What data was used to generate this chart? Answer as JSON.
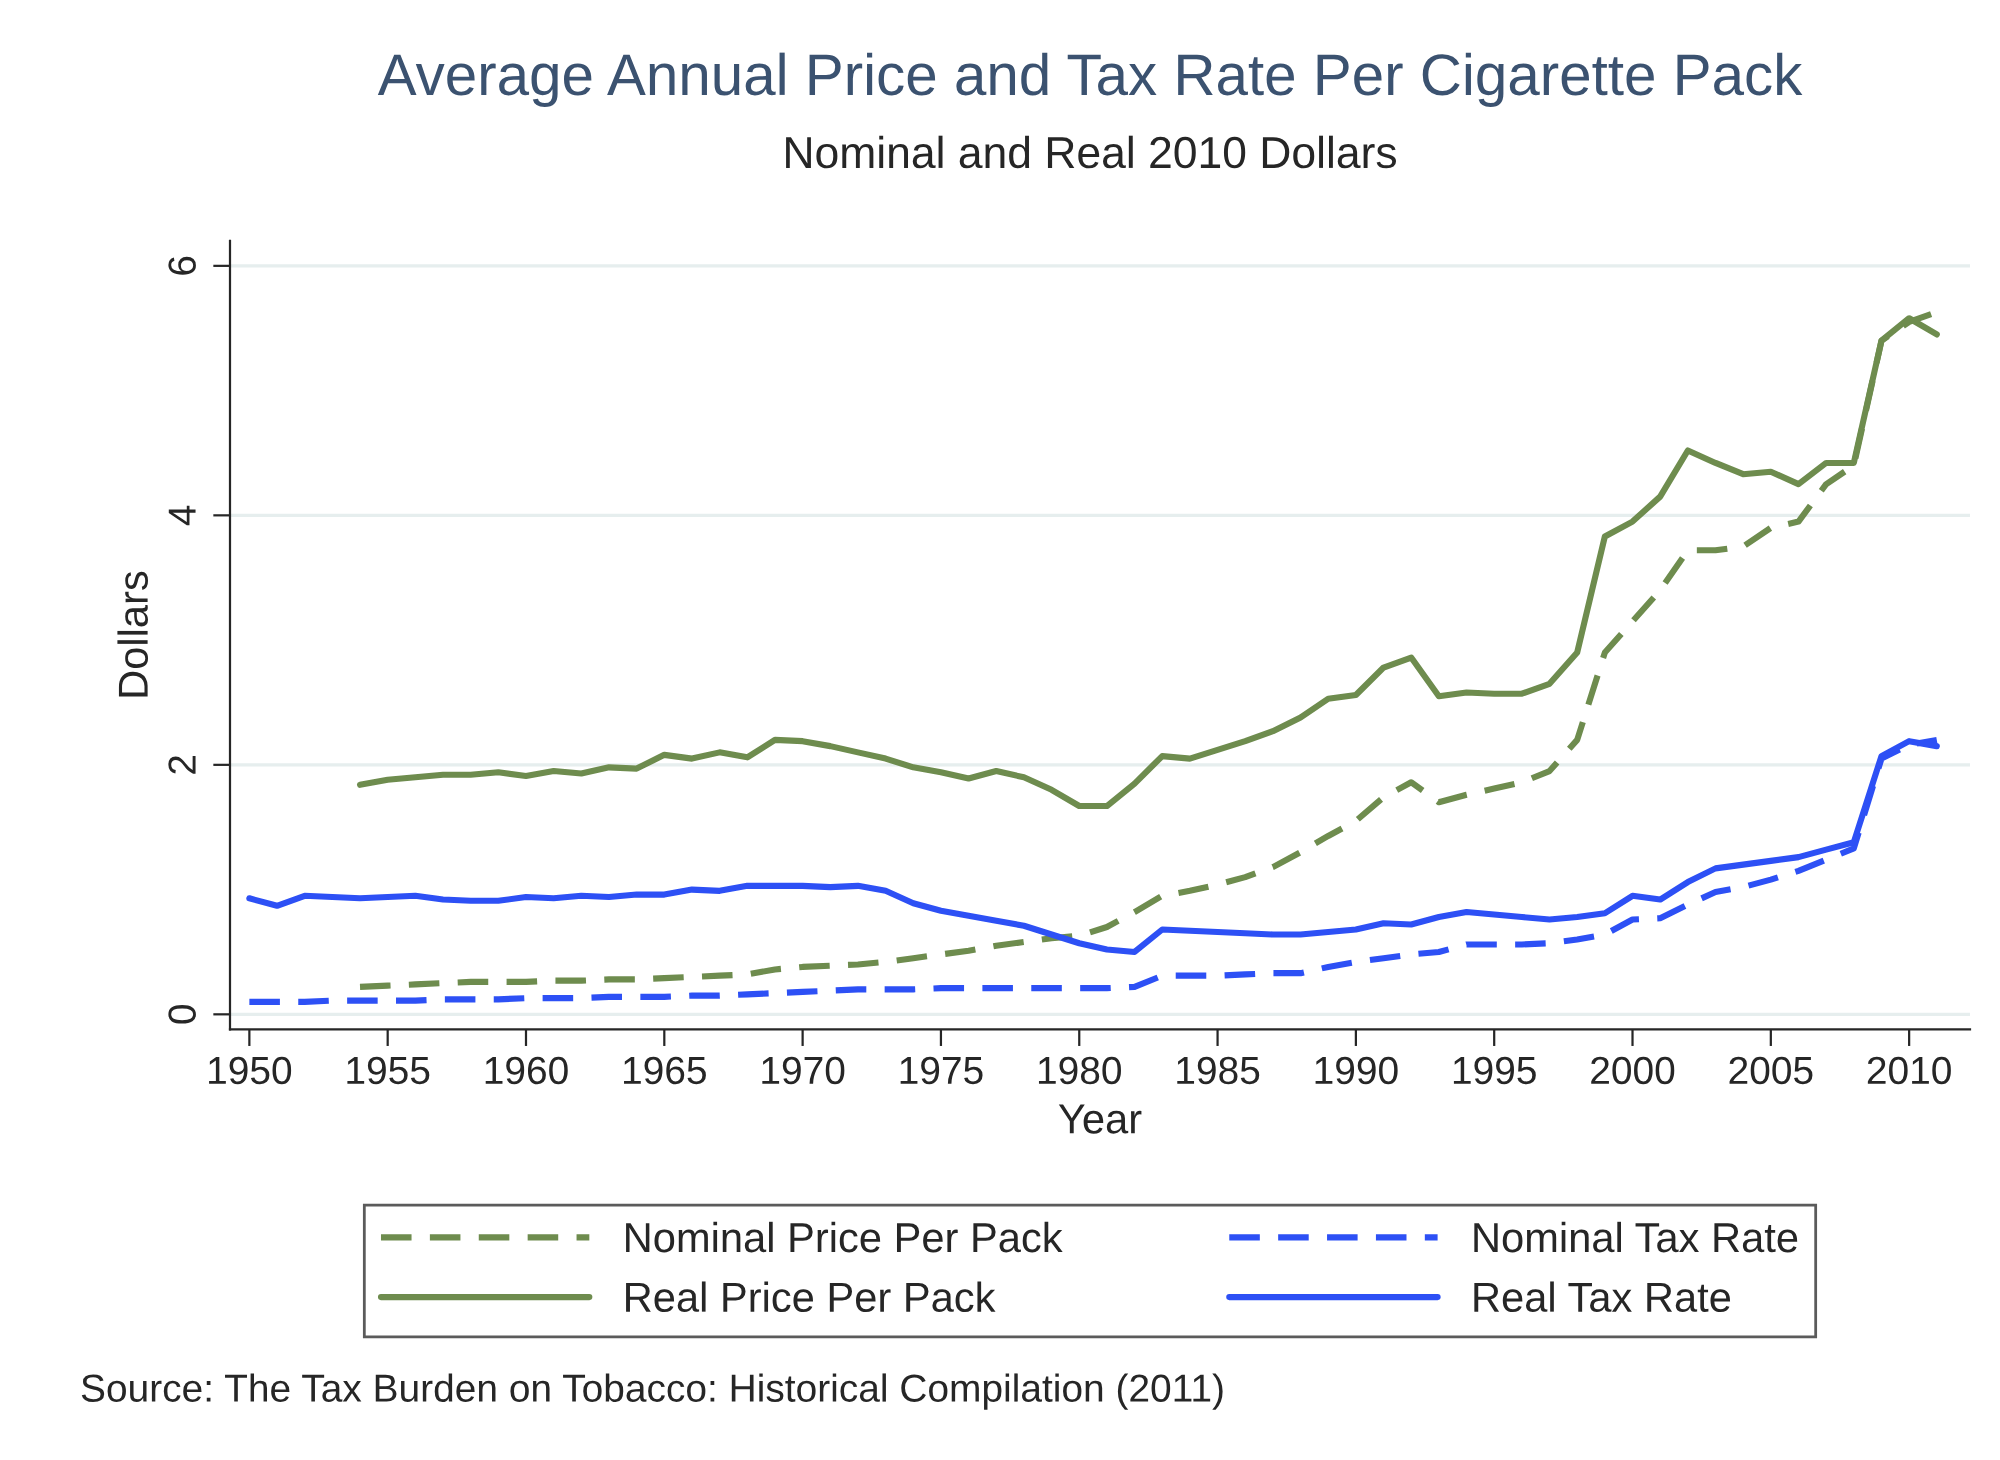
{
  "chart_data": {
    "type": "line",
    "title": "Average Annual Price and Tax Rate Per Cigarette Pack",
    "subtitle": "Nominal and Real 2010 Dollars",
    "xlabel": "Year",
    "ylabel": "Dollars",
    "xlim": [
      1949.3,
      2012.2
    ],
    "xticks": [
      1950,
      1955,
      1960,
      1965,
      1970,
      1975,
      1980,
      1985,
      1990,
      1995,
      2000,
      2005,
      2010
    ],
    "ylim": [
      -0.12,
      6.2
    ],
    "yticks": [
      0,
      2,
      4,
      6
    ],
    "grid": "y",
    "legend": "bottom",
    "annotations": [
      "Source: The Tax Burden on Tobacco: Historical Compilation (2011)"
    ],
    "series": [
      {
        "name": "Nominal Price Per Pack",
        "color": "#6e8c4e",
        "line_style": "dashed",
        "x": [
          1954,
          1955,
          1956,
          1957,
          1958,
          1959,
          1960,
          1961,
          1962,
          1963,
          1964,
          1965,
          1966,
          1967,
          1968,
          1969,
          1970,
          1971,
          1972,
          1973,
          1974,
          1975,
          1976,
          1977,
          1978,
          1979,
          1980,
          1981,
          1982,
          1983,
          1984,
          1985,
          1986,
          1987,
          1988,
          1989,
          1990,
          1991,
          1992,
          1993,
          1994,
          1995,
          1996,
          1997,
          1998,
          1999,
          2000,
          2001,
          2002,
          2003,
          2004,
          2005,
          2006,
          2007,
          2008,
          2009,
          2010,
          2011
        ],
        "values": [
          0.22,
          0.23,
          0.24,
          0.25,
          0.26,
          0.26,
          0.26,
          0.27,
          0.27,
          0.28,
          0.28,
          0.29,
          0.3,
          0.31,
          0.32,
          0.36,
          0.38,
          0.39,
          0.4,
          0.42,
          0.45,
          0.48,
          0.51,
          0.55,
          0.58,
          0.61,
          0.63,
          0.7,
          0.82,
          0.95,
          0.99,
          1.04,
          1.1,
          1.18,
          1.3,
          1.43,
          1.55,
          1.74,
          1.86,
          1.7,
          1.76,
          1.81,
          1.86,
          1.95,
          2.2,
          2.9,
          3.15,
          3.4,
          3.72,
          3.72,
          3.75,
          3.9,
          3.95,
          4.25,
          4.4,
          5.4,
          5.55,
          5.63
        ]
      },
      {
        "name": "Real Price Per Pack",
        "color": "#6e8c4e",
        "line_style": "solid",
        "x": [
          1954,
          1955,
          1956,
          1957,
          1958,
          1959,
          1960,
          1961,
          1962,
          1963,
          1964,
          1965,
          1966,
          1967,
          1968,
          1969,
          1970,
          1971,
          1972,
          1973,
          1974,
          1975,
          1976,
          1977,
          1978,
          1979,
          1980,
          1981,
          1982,
          1983,
          1984,
          1985,
          1986,
          1987,
          1988,
          1989,
          1990,
          1991,
          1992,
          1993,
          1994,
          1995,
          1996,
          1997,
          1998,
          1999,
          2000,
          2001,
          2002,
          2003,
          2004,
          2005,
          2006,
          2007,
          2008,
          2009,
          2010,
          2011
        ],
        "values": [
          1.84,
          1.88,
          1.9,
          1.92,
          1.92,
          1.94,
          1.91,
          1.95,
          1.93,
          1.98,
          1.97,
          2.08,
          2.05,
          2.1,
          2.06,
          2.2,
          2.19,
          2.15,
          2.1,
          2.05,
          1.98,
          1.94,
          1.89,
          1.95,
          1.9,
          1.8,
          1.67,
          1.67,
          1.85,
          2.07,
          2.05,
          2.12,
          2.19,
          2.27,
          2.38,
          2.53,
          2.56,
          2.78,
          2.86,
          2.55,
          2.58,
          2.57,
          2.57,
          2.65,
          2.9,
          3.83,
          3.95,
          4.15,
          4.52,
          4.42,
          4.33,
          4.35,
          4.25,
          4.42,
          4.42,
          5.4,
          5.58,
          5.45
        ]
      },
      {
        "name": "Nominal Tax Rate",
        "color": "#2d50f5",
        "line_style": "dashed",
        "x": [
          1950,
          1951,
          1952,
          1953,
          1954,
          1955,
          1956,
          1957,
          1958,
          1959,
          1960,
          1961,
          1962,
          1963,
          1964,
          1965,
          1966,
          1967,
          1968,
          1969,
          1970,
          1971,
          1972,
          1973,
          1974,
          1975,
          1976,
          1977,
          1978,
          1979,
          1980,
          1981,
          1982,
          1983,
          1984,
          1985,
          1986,
          1987,
          1988,
          1989,
          1990,
          1991,
          1992,
          1993,
          1994,
          1995,
          1996,
          1997,
          1998,
          1999,
          2000,
          2001,
          2002,
          2003,
          2004,
          2005,
          2006,
          2007,
          2008,
          2009,
          2010,
          2011
        ],
        "values": [
          0.1,
          0.1,
          0.1,
          0.11,
          0.11,
          0.11,
          0.11,
          0.12,
          0.12,
          0.12,
          0.13,
          0.13,
          0.13,
          0.14,
          0.14,
          0.14,
          0.15,
          0.15,
          0.16,
          0.17,
          0.18,
          0.19,
          0.2,
          0.2,
          0.2,
          0.21,
          0.21,
          0.21,
          0.21,
          0.21,
          0.21,
          0.21,
          0.22,
          0.31,
          0.31,
          0.31,
          0.32,
          0.33,
          0.33,
          0.38,
          0.42,
          0.45,
          0.48,
          0.5,
          0.56,
          0.56,
          0.56,
          0.57,
          0.6,
          0.64,
          0.76,
          0.77,
          0.88,
          0.98,
          1.02,
          1.08,
          1.15,
          1.24,
          1.33,
          2.05,
          2.16,
          2.2
        ]
      },
      {
        "name": "Real Tax Rate",
        "color": "#2d50f5",
        "line_style": "solid",
        "x": [
          1950,
          1951,
          1952,
          1953,
          1954,
          1955,
          1956,
          1957,
          1958,
          1959,
          1960,
          1961,
          1962,
          1963,
          1964,
          1965,
          1966,
          1967,
          1968,
          1969,
          1970,
          1971,
          1972,
          1973,
          1974,
          1975,
          1976,
          1977,
          1978,
          1979,
          1980,
          1981,
          1982,
          1983,
          1984,
          1985,
          1986,
          1987,
          1988,
          1989,
          1990,
          1991,
          1992,
          1993,
          1994,
          1995,
          1996,
          1997,
          1998,
          1999,
          2000,
          2001,
          2002,
          2003,
          2004,
          2005,
          2006,
          2007,
          2008,
          2009,
          2010,
          2011
        ],
        "values": [
          0.93,
          0.87,
          0.95,
          0.94,
          0.93,
          0.94,
          0.95,
          0.92,
          0.91,
          0.91,
          0.94,
          0.93,
          0.95,
          0.94,
          0.96,
          0.96,
          1.0,
          0.99,
          1.03,
          1.03,
          1.03,
          1.02,
          1.03,
          0.99,
          0.89,
          0.83,
          0.79,
          0.75,
          0.71,
          0.64,
          0.57,
          0.52,
          0.5,
          0.68,
          0.67,
          0.66,
          0.65,
          0.64,
          0.64,
          0.66,
          0.68,
          0.73,
          0.72,
          0.78,
          0.82,
          0.8,
          0.78,
          0.76,
          0.78,
          0.81,
          0.95,
          0.92,
          1.06,
          1.17,
          1.2,
          1.23,
          1.26,
          1.32,
          1.38,
          2.07,
          2.19,
          2.15
        ]
      }
    ]
  }
}
